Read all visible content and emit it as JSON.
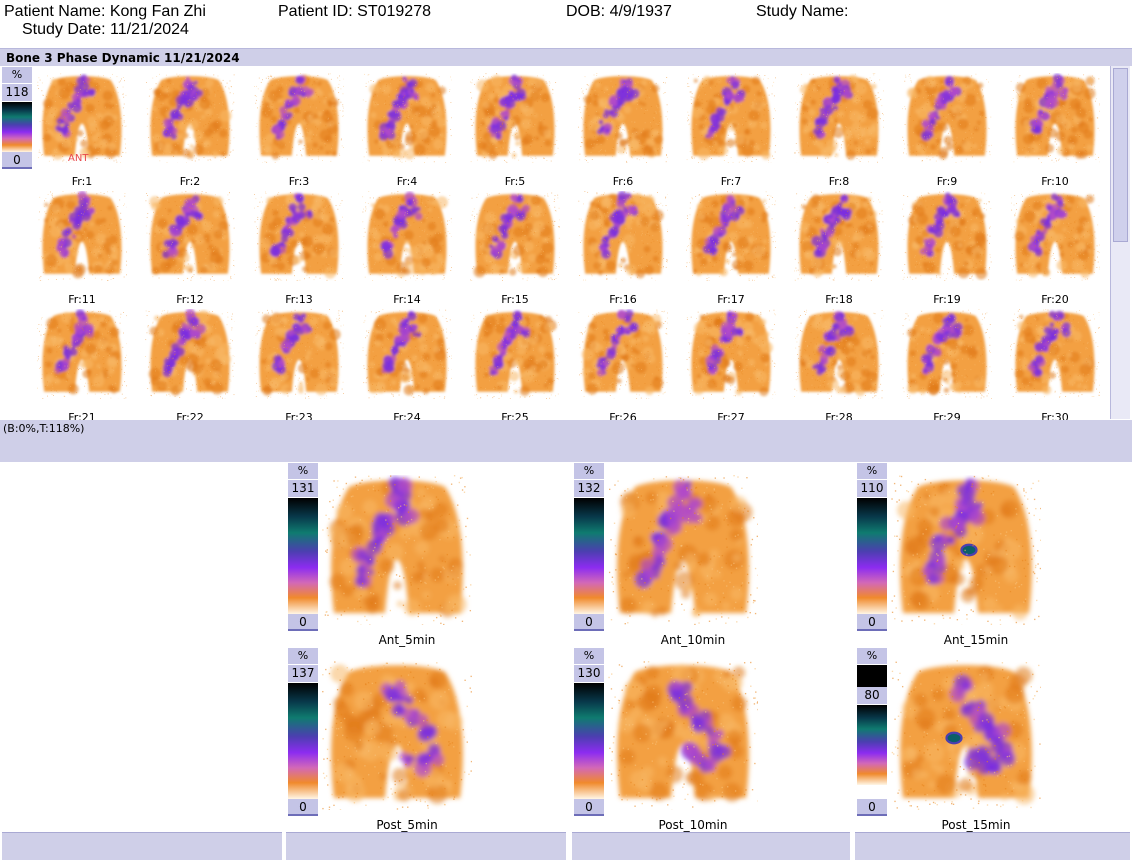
{
  "header": {
    "patient_name": "Patient Name: Kong Fan Zhi",
    "patient_id": "Patient ID: ST019278",
    "dob": "DOB: 4/9/1937",
    "study_name": "Study Name:",
    "study_date": "Study Date: 11/21/2024"
  },
  "dynamic": {
    "title": "Bone 3 Phase Dynamic 11/21/2024",
    "scale": {
      "pct": "%",
      "max": "118",
      "min": "0"
    },
    "orientation": "ANT",
    "frames": [
      "Fr:1",
      "Fr:2",
      "Fr:3",
      "Fr:4",
      "Fr:5",
      "Fr:6",
      "Fr:7",
      "Fr:8",
      "Fr:9",
      "Fr:10",
      "Fr:11",
      "Fr:12",
      "Fr:13",
      "Fr:14",
      "Fr:15",
      "Fr:16",
      "Fr:17",
      "Fr:18",
      "Fr:19",
      "Fr:20",
      "Fr:21",
      "Fr:22",
      "Fr:23",
      "Fr:24",
      "Fr:25",
      "Fr:26",
      "Fr:27",
      "Fr:28",
      "Fr:29",
      "Fr:30"
    ],
    "range_text": "(B:0%,T:118%)"
  },
  "static_images": [
    {
      "label": "Ant_5min",
      "pct": "%",
      "max": "131",
      "min": "0"
    },
    {
      "label": "Ant_10min",
      "pct": "%",
      "max": "132",
      "min": "0"
    },
    {
      "label": "Ant_15min",
      "pct": "%",
      "max": "110",
      "min": "0"
    },
    {
      "label": "Post_5min",
      "pct": "%",
      "max": "137",
      "min": "0"
    },
    {
      "label": "Post_10min",
      "pct": "%",
      "max": "130",
      "min": "0"
    },
    {
      "label": "Post_15min",
      "pct": "%",
      "max": "80",
      "min": "0"
    }
  ],
  "colors": {
    "panel_bar": "#cfcfe8",
    "scale_label_bg": "#c4c4e6",
    "uptake_orange": "#f08a2c",
    "uptake_purple": "#7a2ee0",
    "orientation_marker": "#e8484b"
  }
}
